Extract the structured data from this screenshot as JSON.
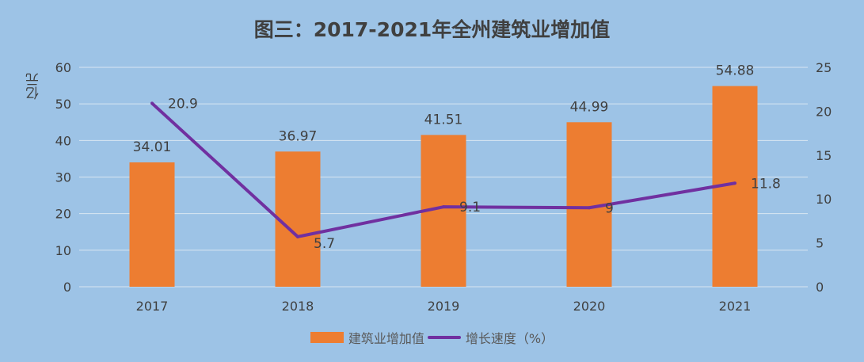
{
  "chart_data": {
    "type": "bar+line",
    "title": "图三：2017-2021年全州建筑业增加值",
    "categories": [
      "2017",
      "2018",
      "2019",
      "2020",
      "2021"
    ],
    "ylabel": "亿元",
    "ylim": [
      0,
      60
    ],
    "yticks": [
      0,
      10,
      20,
      30,
      40,
      50,
      60
    ],
    "y2lim": [
      0,
      25
    ],
    "y2ticks": [
      0,
      5,
      10,
      15,
      20,
      25
    ],
    "grid": true,
    "legend_position": "bottom",
    "series": [
      {
        "name": "建筑业增加值",
        "type": "bar",
        "axis": "left",
        "color": "#ED7D31",
        "values": [
          34.01,
          36.97,
          41.51,
          44.99,
          54.88
        ],
        "labels": [
          "34.01",
          "36.97",
          "41.51",
          "44.99",
          "54.88"
        ]
      },
      {
        "name": "增长速度（%）",
        "type": "line",
        "axis": "right",
        "color": "#7030A0",
        "values": [
          20.9,
          5.7,
          9.1,
          9,
          11.8
        ],
        "labels": [
          "20.9",
          "5.7",
          "9.1",
          "9",
          "11.8"
        ]
      }
    ]
  }
}
